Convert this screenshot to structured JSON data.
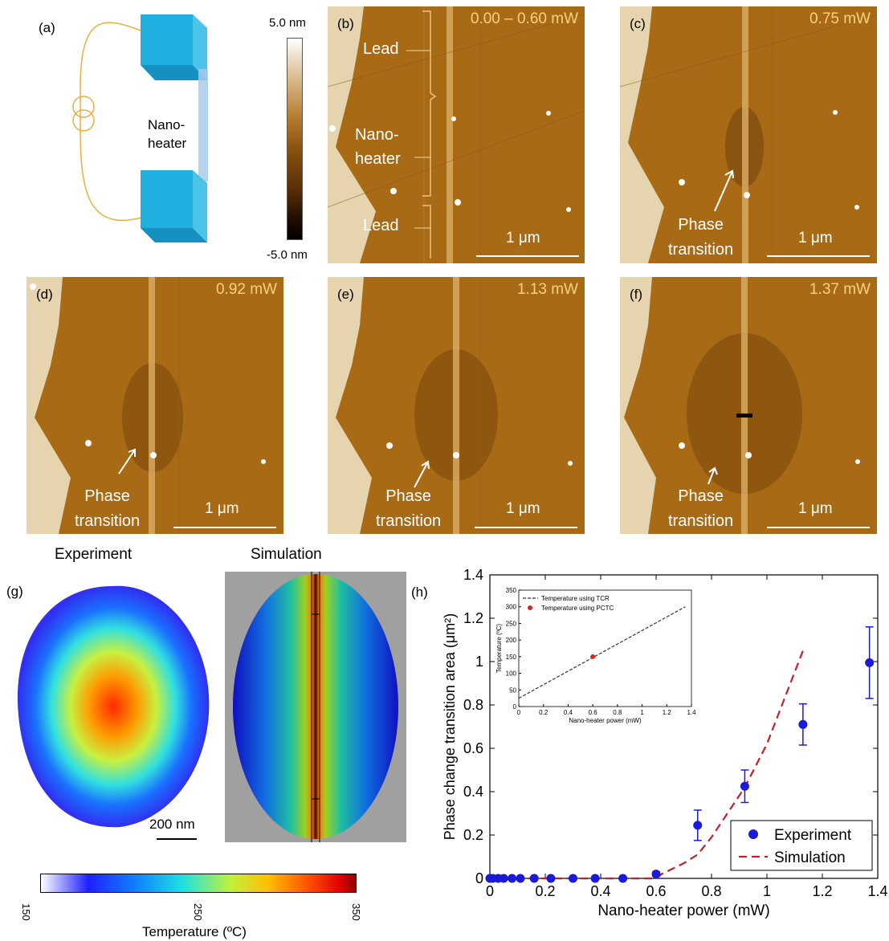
{
  "panels": {
    "a": {
      "label": "(a)",
      "device_label": "Nano-\nheater"
    },
    "colorbar": {
      "max": "5.0 nm",
      "min": "-5.0 nm"
    },
    "b": {
      "label": "(b)",
      "power": "0.00 – 0.60 mW",
      "lead_top": "Lead",
      "nanoheater": "Nano-\nheater",
      "lead_bottom": "Lead",
      "scale": "1 μm"
    },
    "c": {
      "label": "(c)",
      "power": "0.75 mW",
      "annotation": "Phase\ntransition",
      "scale": "1 μm"
    },
    "d": {
      "label": "(d)",
      "power": "0.92 mW",
      "annotation": "Phase\ntransition",
      "scale": "1 μm"
    },
    "e": {
      "label": "(e)",
      "power": "1.13 mW",
      "annotation": "Phase\ntransition",
      "scale": "1 μm"
    },
    "f": {
      "label": "(f)",
      "power": "1.37 mW",
      "annotation": "Phase\ntransition",
      "scale": "1 μm"
    },
    "g": {
      "label": "(g)",
      "experiment_title": "Experiment",
      "simulation_title": "Simulation",
      "scale": "200 nm",
      "temp_colorbar": {
        "ticks": [
          "150",
          "250",
          "350"
        ],
        "label": "Temperature (ºC)"
      }
    },
    "h": {
      "label": "(h)"
    }
  },
  "colors": {
    "afm_mid": "#a86a14",
    "afm_light": "#ecdcb8",
    "experiment_marker": "#1a1ad8",
    "simulation_line": "#c41f2a",
    "inset_tcr": "#333333",
    "inset_pctc": "#e02020"
  },
  "chart_data": [
    {
      "type": "scatter",
      "xlabel": "Nano-heater power (mW)",
      "ylabel": "Phase change transition area (μm²)",
      "xlim": [
        0,
        1.4
      ],
      "ylim": [
        0,
        1.4
      ],
      "xticks": [
        "0",
        "0.2",
        "0.4",
        "0.6",
        "0.8",
        "1",
        "1.2",
        "1.4"
      ],
      "yticks": [
        "0",
        "0.2",
        "0.4",
        "0.6",
        "0.8",
        "1",
        "1.2",
        "1.4"
      ],
      "legend": "bottom-right",
      "series": [
        {
          "name": "Experiment",
          "style": "markers-errorbars",
          "x": [
            0,
            0.01,
            0.03,
            0.05,
            0.08,
            0.11,
            0.16,
            0.22,
            0.3,
            0.38,
            0.48,
            0.6,
            0.75,
            0.92,
            1.13,
            1.37
          ],
          "y": [
            0,
            0,
            0,
            0,
            0,
            0,
            0,
            0,
            0,
            0,
            0,
            0.02,
            0.245,
            0.425,
            0.71,
            0.995
          ],
          "err": [
            0,
            0,
            0,
            0,
            0,
            0,
            0,
            0,
            0,
            0,
            0,
            0.01,
            0.07,
            0.075,
            0.095,
            0.165
          ]
        },
        {
          "name": "Simulation",
          "style": "dashed",
          "x": [
            0,
            0.6,
            0.62,
            0.7,
            0.75,
            0.8,
            0.92,
            1.0,
            1.13
          ],
          "y": [
            0,
            0,
            0.02,
            0.07,
            0.11,
            0.19,
            0.42,
            0.62,
            1.05
          ]
        }
      ]
    },
    {
      "type": "line",
      "xlabel": "Nano-heater power (mW)",
      "ylabel": "Temperature (ºC)",
      "xlim": [
        0,
        1.4
      ],
      "ylim": [
        0,
        350
      ],
      "xticks": [
        "0",
        "0.2",
        "0.4",
        "0.6",
        "0.8",
        "1",
        "1.2",
        "1.4"
      ],
      "yticks": [
        "0",
        "50",
        "100",
        "150",
        "200",
        "250",
        "300",
        "350"
      ],
      "legend": "top-left",
      "series": [
        {
          "name": "Temperature using TCR",
          "style": "dashed",
          "x": [
            0,
            1.35
          ],
          "y": [
            25,
            300
          ]
        },
        {
          "name": "Temperature using PCTC",
          "style": "marker",
          "x": [
            0.6
          ],
          "y": [
            150
          ]
        }
      ]
    }
  ]
}
